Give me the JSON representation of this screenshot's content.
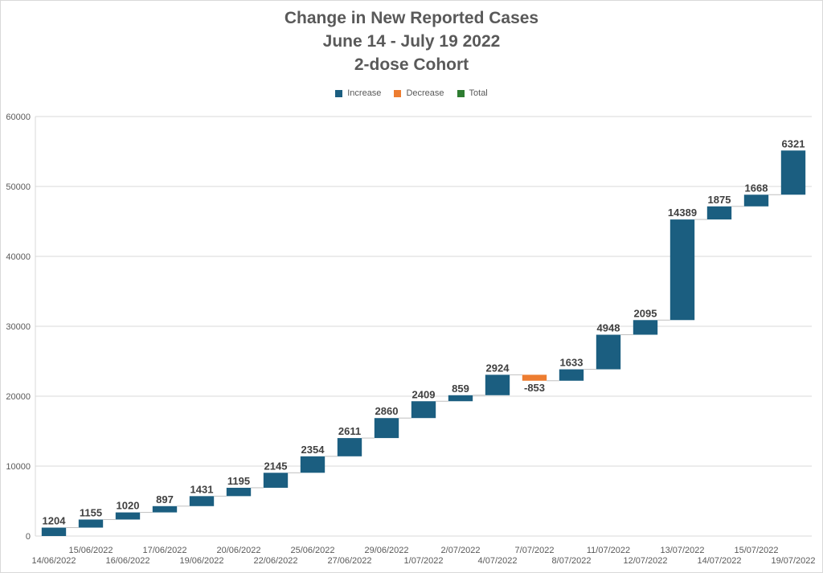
{
  "chart_data": {
    "type": "waterfall",
    "title_lines": [
      "Change in New Reported Cases",
      "June 14 - July 19 2022",
      "2-dose Cohort"
    ],
    "legend": [
      {
        "label": "Increase",
        "color": "#1b5e80"
      },
      {
        "label": "Decrease",
        "color": "#ed7d31"
      },
      {
        "label": "Total",
        "color": "#2e7d32"
      }
    ],
    "ylim": [
      0,
      60000
    ],
    "yticks": [
      0,
      10000,
      20000,
      30000,
      40000,
      50000,
      60000
    ],
    "categories": [
      "14/06/2022",
      "15/06/2022",
      "16/06/2022",
      "17/06/2022",
      "19/06/2022",
      "20/06/2022",
      "22/06/2022",
      "25/06/2022",
      "27/06/2022",
      "29/06/2022",
      "1/07/2022",
      "2/07/2022",
      "4/07/2022",
      "7/07/2022",
      "8/07/2022",
      "11/07/2022",
      "12/07/2022",
      "13/07/2022",
      "14/07/2022",
      "15/07/2022",
      "19/07/2022"
    ],
    "values": [
      1204,
      1155,
      1020,
      897,
      1431,
      1195,
      2145,
      2354,
      2611,
      2860,
      2409,
      859,
      2924,
      -853,
      1633,
      4948,
      2095,
      14389,
      1875,
      1668,
      6321
    ],
    "start": 0,
    "grid": true,
    "legend_position": "top-center"
  }
}
